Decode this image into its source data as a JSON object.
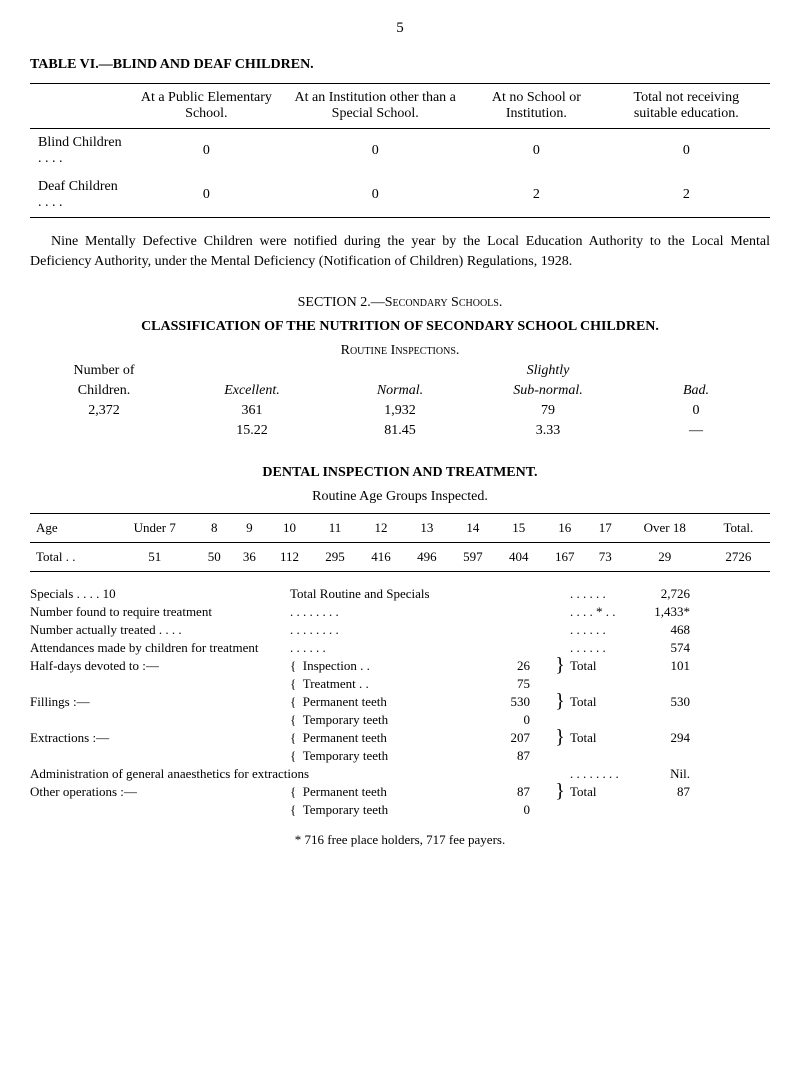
{
  "page_number": "5",
  "table6": {
    "title": "TABLE VI.—BLIND AND DEAF CHILDREN.",
    "headers": [
      "",
      "At a Public Elementary School.",
      "At an Institution other than a Special School.",
      "At no School or Institution.",
      "Total not receiving suitable education."
    ],
    "rows": [
      [
        "Blind Children  . .   . .",
        "0",
        "0",
        "0",
        "0"
      ],
      [
        "Deaf Children   . .   . .",
        "0",
        "0",
        "2",
        "2"
      ]
    ]
  },
  "para1": "Nine Mentally Defective Children were notified during the year by the Local Education Authority to the Local Mental Deficiency Authority, under the Mental Deficiency (Notification of Children) Regulations, 1928.",
  "section2": {
    "title_pre": "SECTION 2.—",
    "title_sc": "Secondary Schools.",
    "classification": "CLASSIFICATION OF THE NUTRITION OF SECONDARY SCHOOL CHILDREN.",
    "routine_label": "Routine Inspections.",
    "cols": [
      {
        "h1": "Number of",
        "h2": "Children.",
        "v1": "2,372",
        "v2": ""
      },
      {
        "h1": "",
        "h2": "Excellent.",
        "v1": "361",
        "v2": "15.22"
      },
      {
        "h1": "",
        "h2": "Normal.",
        "v1": "1,932",
        "v2": "81.45"
      },
      {
        "h1": "Slightly",
        "h2": "Sub-normal.",
        "v1": "79",
        "v2": "3.33"
      },
      {
        "h1": "",
        "h2": "Bad.",
        "v1": "0",
        "v2": "—"
      }
    ]
  },
  "dental": {
    "title": "DENTAL INSPECTION AND TREATMENT.",
    "subtitle": "Routine Age Groups Inspected.",
    "headers": [
      "Age",
      "Under 7",
      "8",
      "9",
      "10",
      "11",
      "12",
      "13",
      "14",
      "15",
      "16",
      "17",
      "Over 18",
      "Total."
    ],
    "row": [
      "Total   . .",
      "51",
      "50",
      "36",
      "112",
      "295",
      "416",
      "496",
      "597",
      "404",
      "167",
      "73",
      "29",
      "2726"
    ]
  },
  "stats": {
    "lines": [
      {
        "label": "Specials     . .    . .        10",
        "mid": "Total Routine and Specials",
        "n1": "",
        "brace": "",
        "tot": ". .     . .     . .",
        "val": "2,726"
      },
      {
        "label": "Number found to require treatment",
        "mid": ". .     . .     . .     . .",
        "n1": "",
        "brace": "",
        "tot": ". .     . .   * . .",
        "val": "1,433*"
      },
      {
        "label": "Number actually treated     . .     . .",
        "mid": ". .     . .     . .     . .",
        "n1": "",
        "brace": "",
        "tot": ". .     . .     . .",
        "val": "468"
      },
      {
        "label": "Attendances made by children for treatment",
        "mid": ". .     . .     . .",
        "n1": "",
        "brace": "",
        "tot": ". .     . .     . .",
        "val": "574"
      }
    ],
    "pairs": [
      {
        "label": "Half-days devoted to :—",
        "a": "Inspection  . .",
        "an": "26",
        "b": "Treatment  . .",
        "bn": "75",
        "tot": "Total",
        "val": "101"
      },
      {
        "label": "Fillings :—",
        "a": "Permanent teeth",
        "an": "530",
        "b": "Temporary teeth",
        "bn": "0",
        "tot": "Total",
        "val": "530"
      },
      {
        "label": "Extractions :—",
        "a": "Permanent teeth",
        "an": "207",
        "b": "Temporary teeth",
        "bn": "87",
        "tot": "Total",
        "val": "294"
      }
    ],
    "admin": {
      "label": "Administration of general anaesthetics for extractions",
      "mid": ". .     . .     . .     . .",
      "val": "Nil."
    },
    "other": {
      "label": "Other operations :—",
      "a": "Permanent teeth",
      "an": "87",
      "b": "Temporary teeth",
      "bn": "0",
      "tot": "Total",
      "val": "87"
    }
  },
  "footnote": "* 716 free place holders, 717 fee payers."
}
